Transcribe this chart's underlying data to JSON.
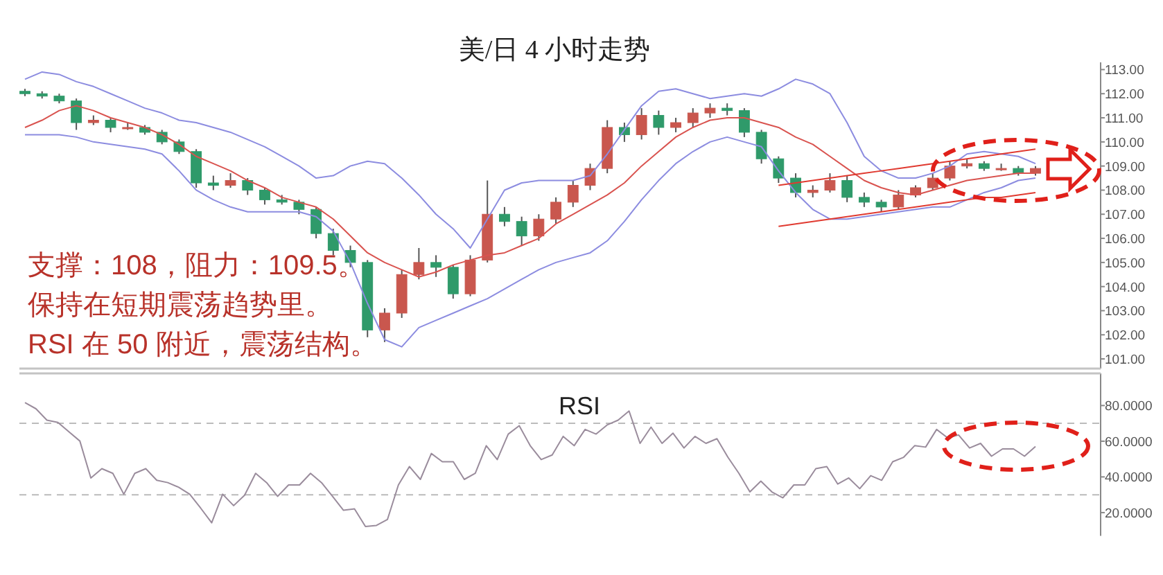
{
  "chart_data": [
    {
      "type": "candlestick",
      "title": "美/日 4 小时走势",
      "tick_labels": "y",
      "categories": [
        null,
        null,
        null,
        null,
        null,
        null,
        null,
        null,
        null,
        null,
        null,
        null,
        null,
        null,
        null,
        null,
        null,
        null,
        null,
        null,
        null,
        null,
        null,
        null,
        null,
        null,
        null,
        null,
        null,
        null,
        null,
        null,
        null,
        null,
        null,
        null,
        null,
        null,
        null,
        null,
        null,
        null,
        null,
        null,
        null,
        null,
        null,
        null,
        null,
        null,
        null,
        null,
        null,
        null,
        null,
        null,
        null,
        null,
        null,
        null
      ],
      "ohlc": [
        [
          112.1,
          112.2,
          111.9,
          112.0
        ],
        [
          112.0,
          112.1,
          111.8,
          111.9
        ],
        [
          111.9,
          112.0,
          111.6,
          111.7
        ],
        [
          111.7,
          111.8,
          110.5,
          110.8
        ],
        [
          110.8,
          111.1,
          110.7,
          110.9
        ],
        [
          110.9,
          111.0,
          110.4,
          110.6
        ],
        [
          110.6,
          110.8,
          110.5,
          110.6
        ],
        [
          110.6,
          110.7,
          110.3,
          110.4
        ],
        [
          110.4,
          110.5,
          109.9,
          110.0
        ],
        [
          110.0,
          110.1,
          109.5,
          109.6
        ],
        [
          109.6,
          109.7,
          108.1,
          108.3
        ],
        [
          108.3,
          108.6,
          108.0,
          108.2
        ],
        [
          108.2,
          108.7,
          108.1,
          108.4
        ],
        [
          108.4,
          108.5,
          107.8,
          108.0
        ],
        [
          108.0,
          108.1,
          107.4,
          107.6
        ],
        [
          107.6,
          107.8,
          107.4,
          107.5
        ],
        [
          107.5,
          107.6,
          107.0,
          107.2
        ],
        [
          107.2,
          107.3,
          106.0,
          106.2
        ],
        [
          106.2,
          106.4,
          105.3,
          105.5
        ],
        [
          105.5,
          105.7,
          104.8,
          105.0
        ],
        [
          105.0,
          105.1,
          101.9,
          102.2
        ],
        [
          102.2,
          103.1,
          101.7,
          102.9
        ],
        [
          102.9,
          104.7,
          102.7,
          104.5
        ],
        [
          104.5,
          105.6,
          104.3,
          105.0
        ],
        [
          105.0,
          105.3,
          104.4,
          104.8
        ],
        [
          104.8,
          104.9,
          103.5,
          103.7
        ],
        [
          103.7,
          105.3,
          103.6,
          105.1
        ],
        [
          105.1,
          108.4,
          105.0,
          107.0
        ],
        [
          107.0,
          107.3,
          106.5,
          106.7
        ],
        [
          106.7,
          106.9,
          105.7,
          106.1
        ],
        [
          106.1,
          107.0,
          105.9,
          106.8
        ],
        [
          106.8,
          107.7,
          106.6,
          107.5
        ],
        [
          107.5,
          108.4,
          107.3,
          108.2
        ],
        [
          108.2,
          109.1,
          108.0,
          108.9
        ],
        [
          108.9,
          110.9,
          108.7,
          110.6
        ],
        [
          110.6,
          110.8,
          110.0,
          110.3
        ],
        [
          110.3,
          111.4,
          110.1,
          111.1
        ],
        [
          111.1,
          111.3,
          110.3,
          110.6
        ],
        [
          110.6,
          111.0,
          110.4,
          110.8
        ],
        [
          110.8,
          111.4,
          110.6,
          111.2
        ],
        [
          111.2,
          111.6,
          111.0,
          111.4
        ],
        [
          111.4,
          111.6,
          111.1,
          111.3
        ],
        [
          111.3,
          111.4,
          110.2,
          110.4
        ],
        [
          110.4,
          110.5,
          109.1,
          109.3
        ],
        [
          109.3,
          109.4,
          108.3,
          108.5
        ],
        [
          108.5,
          108.7,
          107.7,
          107.9
        ],
        [
          107.9,
          108.2,
          107.7,
          108.0
        ],
        [
          108.0,
          108.7,
          107.9,
          108.4
        ],
        [
          108.4,
          108.6,
          107.5,
          107.7
        ],
        [
          107.7,
          107.9,
          107.3,
          107.5
        ],
        [
          107.5,
          107.6,
          107.1,
          107.3
        ],
        [
          107.3,
          108.0,
          107.2,
          107.8
        ],
        [
          107.8,
          108.2,
          107.7,
          108.1
        ],
        [
          108.1,
          108.7,
          108.0,
          108.5
        ],
        [
          108.5,
          109.2,
          108.4,
          109.0
        ],
        [
          109.0,
          109.3,
          108.9,
          109.1
        ],
        [
          109.1,
          109.2,
          108.8,
          108.9
        ],
        [
          108.9,
          109.1,
          108.8,
          108.9
        ],
        [
          108.9,
          109.0,
          108.6,
          108.7
        ],
        [
          108.7,
          109.0,
          108.6,
          108.9
        ]
      ],
      "series": [
        {
          "type": "line",
          "color": "#8c8ce0",
          "values": [
            112.6,
            112.9,
            112.8,
            112.5,
            112.3,
            112.0,
            111.7,
            111.4,
            111.2,
            110.9,
            110.8,
            110.6,
            110.4,
            110.1,
            109.8,
            109.4,
            109.0,
            108.5,
            108.6,
            109.0,
            109.2,
            109.1,
            108.5,
            107.8,
            107.0,
            106.4,
            105.6,
            106.8,
            108.0,
            108.3,
            108.4,
            108.4,
            108.4,
            108.6,
            109.5,
            110.5,
            111.5,
            112.1,
            112.2,
            112.0,
            111.8,
            111.9,
            112.0,
            111.9,
            112.2,
            112.6,
            112.4,
            112.0,
            110.8,
            109.4,
            108.8,
            108.5,
            108.5,
            108.7,
            109.0,
            109.5,
            109.6,
            109.5,
            109.4,
            109.1
          ]
        },
        {
          "type": "line",
          "color": "#d9534f",
          "values": [
            110.6,
            110.9,
            111.3,
            111.5,
            111.3,
            111.0,
            110.8,
            110.6,
            110.3,
            109.9,
            109.4,
            109.1,
            108.8,
            108.4,
            108.1,
            107.7,
            107.5,
            107.3,
            106.8,
            106.1,
            105.4,
            105.0,
            104.7,
            104.4,
            104.6,
            104.9,
            105.1,
            105.3,
            105.4,
            105.7,
            106.0,
            106.6,
            107.0,
            107.4,
            107.8,
            108.3,
            109.0,
            109.6,
            110.2,
            110.6,
            110.9,
            111.0,
            111.0,
            110.8,
            110.6,
            110.2,
            109.9,
            109.4,
            108.9,
            108.4,
            108.1,
            107.9,
            107.8,
            108.0,
            108.2,
            108.4,
            108.5,
            108.6,
            108.7,
            108.7
          ]
        },
        {
          "type": "line",
          "color": "#8c8ce0",
          "values": [
            110.3,
            110.3,
            110.3,
            110.2,
            110.0,
            109.9,
            109.8,
            109.7,
            109.5,
            108.8,
            108.0,
            107.6,
            107.3,
            107.1,
            107.1,
            107.1,
            107.1,
            106.9,
            106.3,
            105.0,
            103.3,
            101.8,
            101.5,
            102.3,
            102.6,
            102.9,
            103.2,
            103.5,
            103.9,
            104.3,
            104.7,
            105.0,
            105.2,
            105.4,
            105.9,
            106.7,
            107.6,
            108.4,
            109.1,
            109.6,
            110.0,
            110.2,
            110.0,
            109.8,
            108.8,
            107.9,
            107.2,
            106.8,
            106.8,
            106.9,
            107.0,
            107.1,
            107.2,
            107.3,
            107.3,
            107.6,
            107.9,
            108.1,
            108.4,
            108.5
          ]
        },
        {
          "type": "line",
          "color": "#e03a30",
          "values": [
            null,
            null,
            null,
            null,
            null,
            null,
            null,
            null,
            null,
            null,
            null,
            null,
            null,
            null,
            null,
            null,
            null,
            null,
            null,
            null,
            null,
            null,
            null,
            null,
            null,
            null,
            null,
            null,
            null,
            null,
            null,
            null,
            null,
            null,
            null,
            null,
            null,
            null,
            null,
            null,
            null,
            null,
            null,
            null,
            108.2,
            108.3,
            108.4,
            108.5,
            108.6,
            108.7,
            108.8,
            108.9,
            109.0,
            109.1,
            109.2,
            109.3,
            109.4,
            109.5,
            109.6,
            109.7
          ]
        },
        {
          "type": "line",
          "color": "#e03a30",
          "values": [
            null,
            null,
            null,
            null,
            null,
            null,
            null,
            null,
            null,
            null,
            null,
            null,
            null,
            null,
            null,
            null,
            null,
            null,
            null,
            null,
            null,
            null,
            null,
            null,
            null,
            null,
            null,
            null,
            null,
            null,
            null,
            null,
            null,
            null,
            null,
            null,
            null,
            null,
            null,
            null,
            null,
            null,
            null,
            null,
            106.5,
            106.6,
            106.7,
            106.8,
            106.9,
            107.0,
            107.1,
            107.2,
            107.3,
            107.4,
            107.5,
            107.6,
            107.7,
            107.7,
            107.8,
            107.9
          ]
        }
      ],
      "ylim": [
        100.6,
        113.3
      ],
      "yticks": [
        {
          "value": 101,
          "label": "101.00"
        },
        {
          "value": 102,
          "label": "102.00"
        },
        {
          "value": 103,
          "label": "103.00"
        },
        {
          "value": 104,
          "label": "104.00"
        },
        {
          "value": 105,
          "label": "105.00"
        },
        {
          "value": 106,
          "label": "106.00"
        },
        {
          "value": 107,
          "label": "107.00"
        },
        {
          "value": 108,
          "label": "108.00"
        },
        {
          "value": 109,
          "label": "109.00"
        },
        {
          "value": 110,
          "label": "110.00"
        },
        {
          "value": 111,
          "label": "111.00"
        },
        {
          "value": 112,
          "label": "112.00"
        },
        {
          "value": 113,
          "label": "113.00"
        }
      ],
      "annotations": [
        "支撑：108，阻力：109.5。",
        "保持在短期震荡趋势里。",
        "RSI 在 50 附近，震荡结构。"
      ]
    },
    {
      "type": "line",
      "title": "RSI",
      "tick_labels": "y",
      "categories": [
        null,
        null,
        null,
        null,
        null,
        null,
        null,
        null,
        null,
        null,
        null,
        null,
        null,
        null,
        null,
        null,
        null,
        null,
        null,
        null,
        null,
        null,
        null,
        null,
        null,
        null,
        null,
        null,
        null,
        null,
        null,
        null,
        null,
        null,
        null,
        null,
        null,
        null,
        null,
        null,
        null,
        null,
        null,
        null,
        null,
        null,
        null,
        null,
        null,
        null,
        null,
        null,
        null,
        null,
        null,
        null,
        null,
        null,
        null,
        null,
        null,
        null,
        null,
        null,
        null,
        null,
        null,
        null,
        null,
        null,
        null,
        null,
        null,
        null,
        null,
        null,
        null,
        null,
        null,
        null,
        null,
        null,
        null,
        null,
        null,
        null,
        null,
        null,
        null,
        null,
        null,
        null,
        null
      ],
      "series": [
        {
          "color": "#9a8c9c",
          "values": [
            81.6,
            78.2,
            71.8,
            70.5,
            65.3,
            60.1,
            39.4,
            44.6,
            42.0,
            30.3,
            42.0,
            44.6,
            38.1,
            36.8,
            34.2,
            30.3,
            22.5,
            14.3,
            30.3,
            23.9,
            29.8,
            42.0,
            36.8,
            29.1,
            35.5,
            35.5,
            42.0,
            36.8,
            29.1,
            21.3,
            22.1,
            12.2,
            12.8,
            16.1,
            35.5,
            45.8,
            38.6,
            53.1,
            48.5,
            48.5,
            38.6,
            42.0,
            57.5,
            49.7,
            64.0,
            68.7,
            57.5,
            49.7,
            52.3,
            62.7,
            57.5,
            66.6,
            64.0,
            69.1,
            71.8,
            76.9,
            58.8,
            67.9,
            58.8,
            64.5,
            56.2,
            62.7,
            58.8,
            61.4,
            51.0,
            42.0,
            31.6,
            37.6,
            31.6,
            28.3,
            35.5,
            35.5,
            44.6,
            45.8,
            36.0,
            39.4,
            33.4,
            40.7,
            38.1,
            48.5,
            51.0,
            57.5,
            56.7,
            66.6,
            61.9,
            63.5,
            56.2,
            58.8,
            51.6,
            55.7,
            55.7,
            51.6,
            57.0
          ]
        }
      ],
      "ylim": [
        7,
        98
      ],
      "yticks": [
        {
          "value": 20,
          "label": "20.0000"
        },
        {
          "value": 40,
          "label": "40.0000"
        },
        {
          "value": 60,
          "label": "60.0000"
        },
        {
          "value": 80,
          "label": "80.0000"
        }
      ],
      "ref_lines": [
        {
          "axis": "y",
          "value": 70,
          "color": "#bbbbbb",
          "line_style": "dashed"
        },
        {
          "axis": "y",
          "value": 30,
          "color": "#bbbbbb",
          "line_style": "dashed"
        }
      ]
    }
  ]
}
